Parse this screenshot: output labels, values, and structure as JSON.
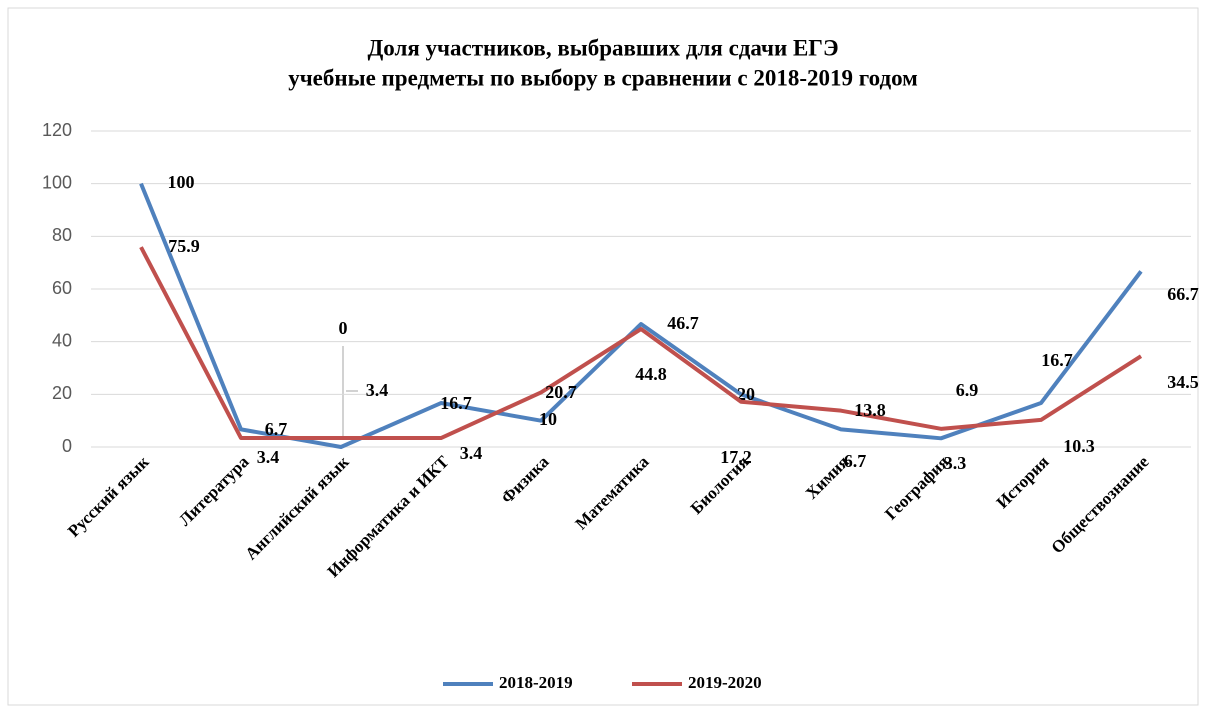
{
  "chart_data": {
    "type": "line",
    "title": [
      "Доля участников, выбравших для сдачи ЕГЭ",
      "учебные предметы по выбору в сравнении с 2018-2019 годом"
    ],
    "categories": [
      "Русский язык",
      "Литература",
      "Английский язык",
      "Информатика и ИКТ",
      "Физика",
      "Математика",
      "Биология",
      "Химия",
      "География",
      "История",
      "Обществознание"
    ],
    "series": [
      {
        "name": "2018-2019",
        "color": "#4f81bd",
        "values": [
          100,
          6.7,
          0,
          16.7,
          10,
          46.7,
          20,
          6.7,
          3.3,
          16.7,
          66.7
        ]
      },
      {
        "name": "2019-2020",
        "color": "#c0504d",
        "values": [
          75.9,
          3.4,
          3.4,
          3.4,
          20.7,
          44.8,
          17.2,
          13.8,
          6.9,
          10.3,
          34.5
        ]
      }
    ],
    "ylim": [
      0,
      120
    ],
    "yticks": [
      0,
      20,
      40,
      60,
      80,
      100,
      120
    ],
    "grid": true,
    "legend": "bottom"
  }
}
